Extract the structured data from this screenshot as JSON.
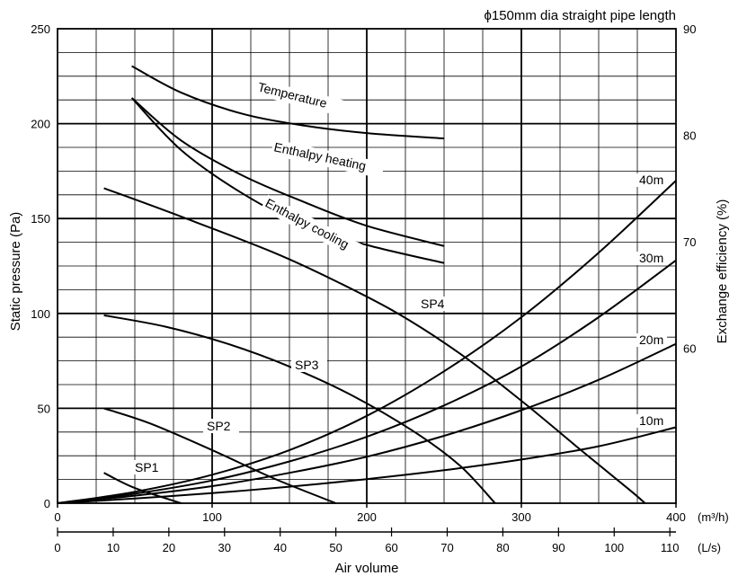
{
  "chart_data": {
    "type": "line",
    "title": "ϕ150mm dia straight pipe length",
    "xlabel": "Air volume",
    "ylabel_left": "Static pressure (Pa)",
    "ylabel_right": "Exchange efficiency (%)",
    "x_unit_primary": "(m³/h)",
    "x_unit_secondary": "(L/s)",
    "xlim_m3h": [
      0,
      400
    ],
    "xlim_ls": [
      0,
      111.1
    ],
    "ylim_left": [
      0,
      250
    ],
    "ylim_right": [
      45.45,
      90
    ],
    "x_ticks_m3h": [
      "0",
      "100",
      "200",
      "300",
      "400"
    ],
    "x_ticks_ls": [
      "0",
      "10",
      "20",
      "30",
      "40",
      "50",
      "60",
      "70",
      "80",
      "90",
      "100",
      "110"
    ],
    "y_ticks_left": [
      "0",
      "50",
      "100",
      "150",
      "200",
      "250"
    ],
    "y_ticks_right": [
      "60",
      "70",
      "80",
      "90"
    ],
    "grid": true,
    "pressure_series": [
      {
        "name": "SP1",
        "x_m3h": [
          30,
          50,
          80
        ],
        "y": [
          16,
          8,
          0
        ]
      },
      {
        "name": "SP2",
        "x_m3h": [
          30,
          60,
          100,
          140,
          180
        ],
        "y": [
          50,
          42,
          28,
          13,
          0
        ]
      },
      {
        "name": "SP3",
        "x_m3h": [
          30,
          70,
          110,
          150,
          190,
          230,
          260,
          283
        ],
        "y": [
          99,
          93,
          84,
          72,
          57,
          38,
          20,
          0
        ]
      },
      {
        "name": "SP4",
        "x_m3h": [
          30,
          80,
          140,
          180,
          220,
          260,
          300,
          340,
          370,
          380
        ],
        "y": [
          166,
          151,
          132,
          117,
          100,
          79,
          54,
          27,
          7,
          0
        ]
      }
    ],
    "pipe_series": [
      {
        "name": "10m",
        "x_m3h": [
          0,
          50,
          100,
          150,
          200,
          250,
          300,
          350,
          400
        ],
        "y": [
          0,
          2.5,
          5.3,
          8.7,
          12.7,
          17.4,
          23,
          30,
          40
        ]
      },
      {
        "name": "20m",
        "x_m3h": [
          0,
          50,
          100,
          150,
          200,
          250,
          300,
          350,
          400
        ],
        "y": [
          0,
          4,
          9,
          16,
          24.5,
          35.5,
          49,
          65,
          84
        ]
      },
      {
        "name": "30m",
        "x_m3h": [
          0,
          50,
          100,
          150,
          200,
          250,
          300,
          350,
          400
        ],
        "y": [
          0,
          5,
          12,
          22,
          35,
          51.5,
          72,
          98,
          128
        ]
      },
      {
        "name": "40m",
        "x_m3h": [
          0,
          50,
          100,
          150,
          200,
          250,
          300,
          350,
          400
        ],
        "y": [
          0,
          6,
          15,
          28,
          46,
          69.5,
          98,
          132,
          170
        ]
      }
    ],
    "efficiency_series": [
      {
        "name": "Temperature",
        "x_m3h": [
          48,
          80,
          120,
          160,
          200,
          250
        ],
        "y": [
          86.5,
          84,
          82,
          80.9,
          80.2,
          79.7
        ]
      },
      {
        "name": "Enthalpy heating",
        "x_m3h": [
          48,
          80,
          120,
          160,
          200,
          250
        ],
        "y": [
          83.5,
          79.5,
          76.2,
          73.7,
          71.5,
          69.6
        ]
      },
      {
        "name": "Enthalpy cooling",
        "x_m3h": [
          48,
          80,
          120,
          160,
          200,
          250
        ],
        "y": [
          83.5,
          78.6,
          74.5,
          71.5,
          69.7,
          68
        ]
      }
    ]
  },
  "labels": {
    "sp1": "SP1",
    "sp2": "SP2",
    "sp3": "SP3",
    "sp4": "SP4",
    "m10": "10m",
    "m20": "20m",
    "m30": "30m",
    "m40": "40m",
    "temperature": "Temperature",
    "enthalpy_heating": "Enthalpy heating",
    "enthalpy_cooling": "Enthalpy cooling"
  }
}
